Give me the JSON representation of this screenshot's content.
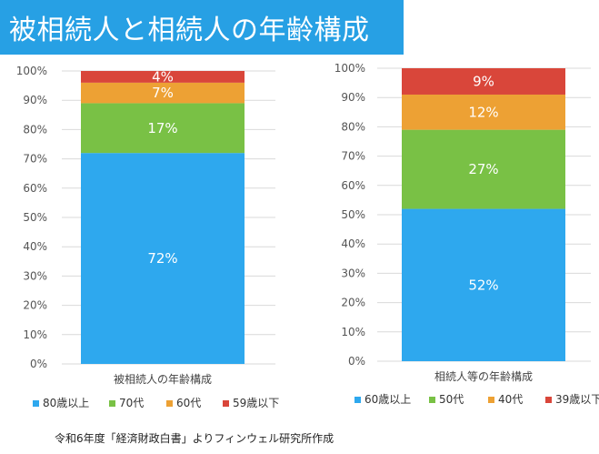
{
  "page": {
    "title": "被相続人と相続人の年齢構成",
    "source_note": "令和6年度「経済財政白書」よりフィンウェル研究所作成"
  },
  "colors": {
    "title_bg": "#27A0E4"
  },
  "chart_data": [
    {
      "type": "bar",
      "stacked": true,
      "categories": [
        "被相続人の年齢構成"
      ],
      "ylim": [
        0,
        100
      ],
      "y_ticks": [
        "0%",
        "10%",
        "20%",
        "30%",
        "40%",
        "50%",
        "60%",
        "70%",
        "80%",
        "90%",
        "100%"
      ],
      "grid": true,
      "legend_position": "bottom",
      "series": [
        {
          "name": "80歳以上",
          "values": [
            72
          ],
          "label": "72%",
          "color": "#2EA8EE"
        },
        {
          "name": "70代",
          "values": [
            17
          ],
          "label": "17%",
          "color": "#79C145"
        },
        {
          "name": "60代",
          "values": [
            7
          ],
          "label": "7%",
          "color": "#EDA134"
        },
        {
          "name": "59歳以下",
          "values": [
            4
          ],
          "label": "4%",
          "color": "#D9463A"
        }
      ]
    },
    {
      "type": "bar",
      "stacked": true,
      "categories": [
        "相続人等の年齢構成"
      ],
      "ylim": [
        0,
        100
      ],
      "y_ticks": [
        "0%",
        "10%",
        "20%",
        "30%",
        "40%",
        "50%",
        "60%",
        "70%",
        "80%",
        "90%",
        "100%"
      ],
      "grid": true,
      "legend_position": "bottom",
      "series": [
        {
          "name": "60歳以上",
          "values": [
            52
          ],
          "label": "52%",
          "color": "#2EA8EE"
        },
        {
          "name": "50代",
          "values": [
            27
          ],
          "label": "27%",
          "color": "#79C145"
        },
        {
          "name": "40代",
          "values": [
            12
          ],
          "label": "12%",
          "color": "#EDA134"
        },
        {
          "name": "39歳以下",
          "values": [
            9
          ],
          "label": "9%",
          "color": "#D9463A"
        }
      ]
    }
  ]
}
